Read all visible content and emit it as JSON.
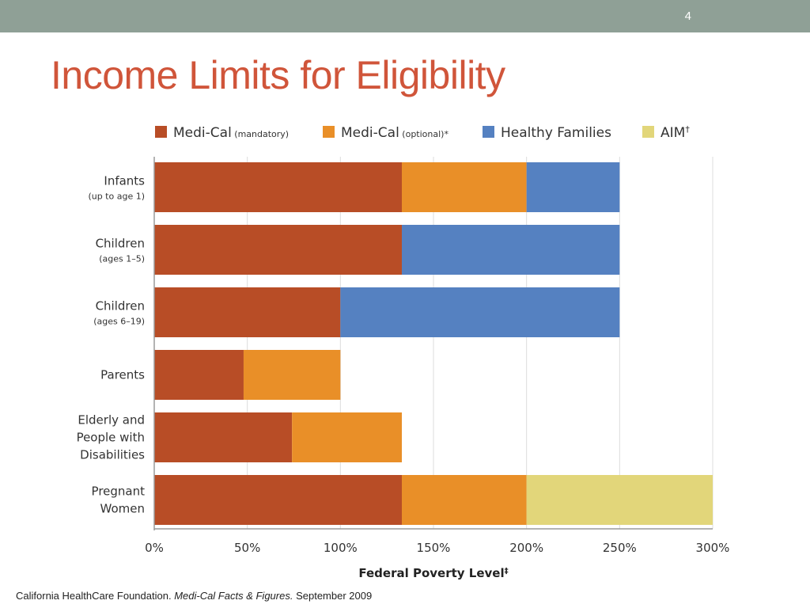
{
  "slide": {
    "number": "4",
    "title": "Income Limits for Eligibility"
  },
  "footer": {
    "source": "California HealthCare Foundation.",
    "publication": "Medi-Cal Facts & Figures.",
    "date": "September 2009"
  },
  "chart_data": {
    "type": "bar",
    "orientation": "horizontal",
    "stacked": true,
    "xlabel": "Federal Poverty Level",
    "xlabel_mark": "‡",
    "xlim": [
      0,
      300
    ],
    "xticks": [
      0,
      50,
      100,
      150,
      200,
      250,
      300
    ],
    "xtick_labels": [
      "0%",
      "50%",
      "100%",
      "150%",
      "200%",
      "250%",
      "300%"
    ],
    "grid": "vertical",
    "legend_position": "top",
    "categories": [
      {
        "lines": [
          "Infants"
        ],
        "sub": "(up to age 1)"
      },
      {
        "lines": [
          "Children"
        ],
        "sub": "(ages 1–5)"
      },
      {
        "lines": [
          "Children"
        ],
        "sub": "(ages 6–19)"
      },
      {
        "lines": [
          "Parents"
        ],
        "sub": ""
      },
      {
        "lines": [
          "Elderly and",
          "People with",
          "Disabilities"
        ],
        "sub": ""
      },
      {
        "lines": [
          "Pregnant",
          "Women"
        ],
        "sub": ""
      }
    ],
    "series": [
      {
        "name": "Medi-Cal",
        "qualifier": "(mandatory)",
        "mark": "",
        "color": "#b84d26",
        "values": [
          133,
          133,
          100,
          48,
          74,
          133
        ]
      },
      {
        "name": "Medi-Cal",
        "qualifier": "(optional)",
        "mark": "*",
        "color": "#e98f28",
        "values": [
          67,
          0,
          0,
          52,
          59,
          67
        ]
      },
      {
        "name": "Healthy Families",
        "qualifier": "",
        "mark": "",
        "color": "#5581c1",
        "values": [
          50,
          117,
          150,
          0,
          0,
          0
        ]
      },
      {
        "name": "AIM",
        "qualifier": "",
        "mark": "†",
        "color": "#e2d67a",
        "values": [
          0,
          0,
          0,
          0,
          0,
          100
        ]
      }
    ]
  }
}
